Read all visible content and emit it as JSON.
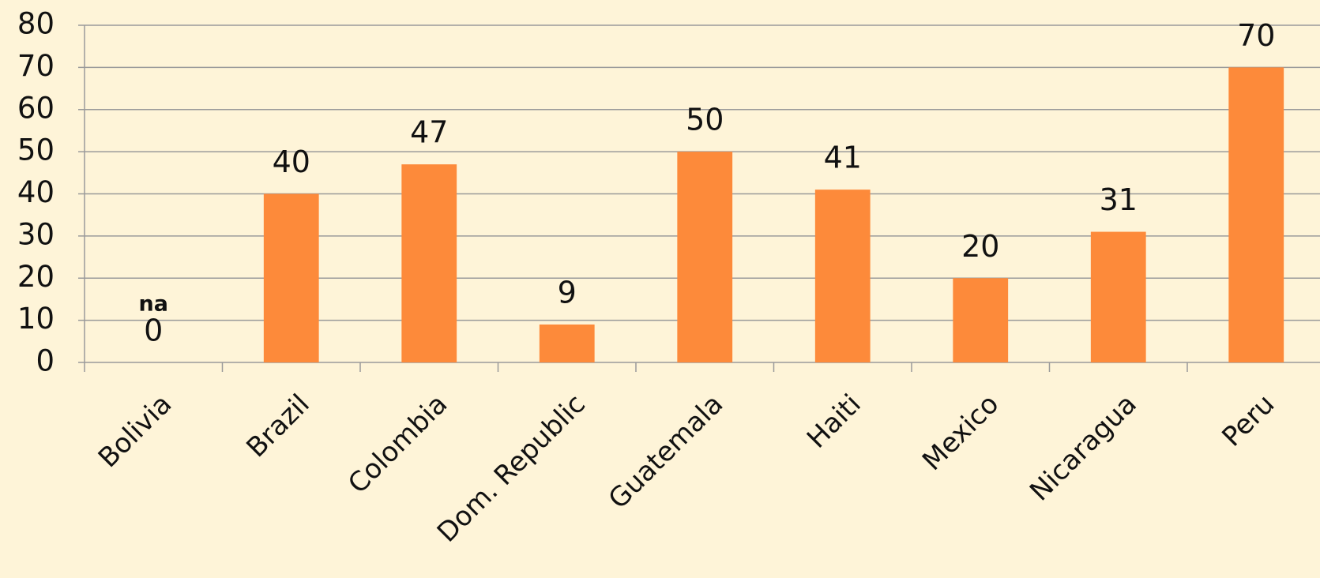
{
  "chart_data": {
    "type": "bar",
    "categories": [
      "Bolivia",
      "Brazil",
      "Colombia",
      "Dom. Republic",
      "Guatemala",
      "Haiti",
      "Mexico",
      "Nicaragua",
      "Peru"
    ],
    "values": [
      0,
      40,
      47,
      9,
      50,
      41,
      20,
      31,
      70
    ],
    "color": "#fd8a3a",
    "ylim": [
      0,
      80
    ],
    "yticks": [
      0,
      10,
      20,
      30,
      40,
      50,
      60,
      70,
      80
    ],
    "grid": true,
    "annotations": [
      "na"
    ]
  }
}
